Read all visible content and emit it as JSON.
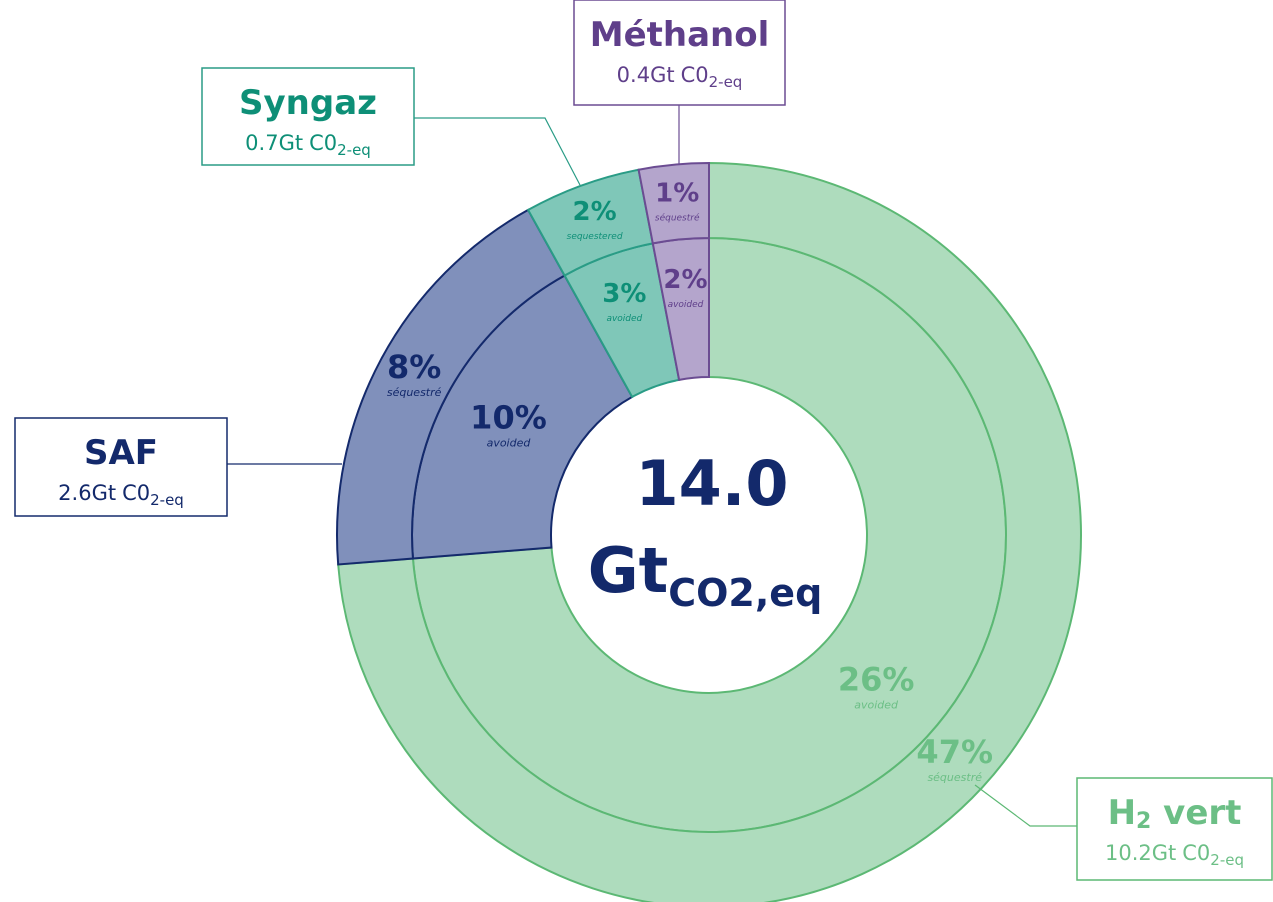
{
  "chart_data": {
    "type": "nested_donut",
    "center": {
      "value": "14.0",
      "unit": "Gt",
      "unit_sub": "CO2,eq"
    },
    "series": [
      {
        "name": "H",
        "name_sub": "2",
        "name_tail": " vert",
        "amount": "10.2Gt",
        "unit": "C0",
        "unit_sub": "2-eq",
        "color": "#aedcbd",
        "stroke": "#5cb874",
        "text_color": "#6cbf86",
        "avoided": 26,
        "avoided_label": "26%",
        "avoided_word": "avoided",
        "sequestered": 47,
        "sequestered_label": "47%",
        "sequestered_word": "séquestré"
      },
      {
        "name": "SAF",
        "amount": "2.6Gt",
        "unit": "C0",
        "unit_sub": "2-eq",
        "color": "#8090bb",
        "stroke": "#142a6c",
        "text_color": "#13296b",
        "avoided": 10,
        "avoided_label": "10%",
        "avoided_word": "avoided",
        "sequestered": 8,
        "sequestered_label": "8%",
        "sequestered_word": "séquestré"
      },
      {
        "name": "Syngaz",
        "amount": "0.7Gt",
        "unit": "C0",
        "unit_sub": "2-eq",
        "color": "#7fc7b8",
        "stroke": "#2a9c86",
        "text_color": "#0e8f77",
        "avoided": 3,
        "avoided_label": "3%",
        "avoided_word": "avoided",
        "sequestered": 2,
        "sequestered_label": "2%",
        "sequestered_word": "sequestered"
      },
      {
        "name": "Méthanol",
        "amount": "0.4Gt",
        "unit": "C0",
        "unit_sub": "2-eq",
        "color": "#b4a5cc",
        "stroke": "#6b4c92",
        "text_color": "#5f3f8a",
        "avoided": 2,
        "avoided_label": "2%",
        "avoided_word": "avoided",
        "sequestered": 1,
        "sequestered_label": "1%",
        "sequestered_word": "séquestré"
      }
    ]
  }
}
